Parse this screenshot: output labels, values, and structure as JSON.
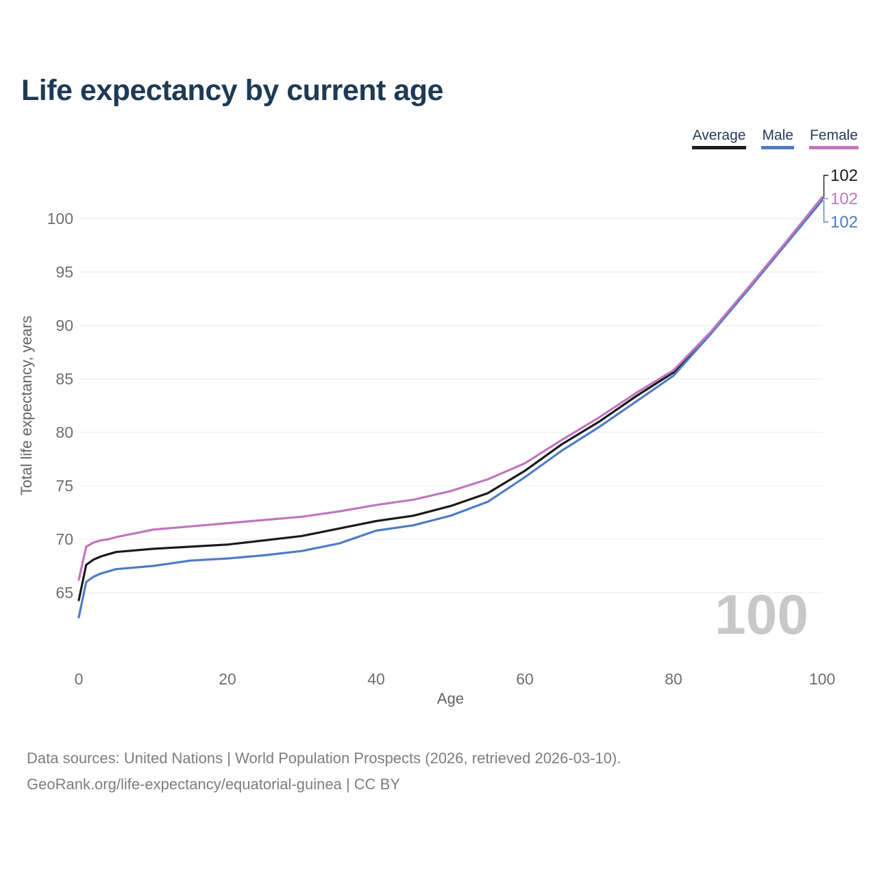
{
  "title": "Life expectancy by current age",
  "legend": {
    "items": [
      {
        "label": "Average",
        "color": "#1f1f1f"
      },
      {
        "label": "Male",
        "color": "#4f7bc5"
      },
      {
        "label": "Female",
        "color": "#bf76bd"
      }
    ]
  },
  "watermark": "100",
  "footer": {
    "line1": "Data sources: United Nations | World Population Prospects (2026, retrieved 2026-03-10).",
    "line2": "GeoRank.org/life-expectancy/equatorial-guinea | CC BY"
  },
  "chart_data": {
    "type": "line",
    "title": "Life expectancy by current age",
    "xlabel": "Age",
    "ylabel": "Total life expectancy, years",
    "xlim": [
      0,
      100
    ],
    "ylim": [
      62,
      103
    ],
    "xticks": [
      0,
      20,
      40,
      60,
      80,
      100
    ],
    "yticks": [
      65,
      70,
      75,
      80,
      85,
      90,
      95,
      100
    ],
    "grid": "horizontal",
    "legend_position": "top-right",
    "x": [
      0,
      1,
      2,
      3,
      4,
      5,
      10,
      15,
      20,
      25,
      30,
      35,
      40,
      45,
      50,
      55,
      60,
      65,
      70,
      75,
      80,
      85,
      90,
      95,
      100
    ],
    "series": [
      {
        "name": "Average",
        "color": "#1a1a1a",
        "end_label": "102",
        "values": [
          64.3,
          67.6,
          68.1,
          68.4,
          68.6,
          68.8,
          69.1,
          69.3,
          69.5,
          69.9,
          70.3,
          71.0,
          71.7,
          72.2,
          73.1,
          74.3,
          76.4,
          78.9,
          81.0,
          83.4,
          85.6,
          89.3,
          93.4,
          97.6,
          101.9
        ]
      },
      {
        "name": "Male",
        "color": "#4f7bc5",
        "end_label": "102",
        "values": [
          62.7,
          66.0,
          66.5,
          66.8,
          67.0,
          67.2,
          67.5,
          68.0,
          68.2,
          68.5,
          68.9,
          69.6,
          70.8,
          71.3,
          72.2,
          73.5,
          75.8,
          78.3,
          80.5,
          82.9,
          85.3,
          89.2,
          93.3,
          97.5,
          101.7
        ]
      },
      {
        "name": "Female",
        "color": "#bf76bd",
        "end_label": "102",
        "values": [
          66.2,
          69.3,
          69.7,
          69.9,
          70.0,
          70.2,
          70.9,
          71.2,
          71.5,
          71.8,
          72.1,
          72.6,
          73.2,
          73.7,
          74.5,
          75.6,
          77.1,
          79.3,
          81.4,
          83.7,
          85.8,
          89.4,
          93.5,
          97.7,
          102.0
        ]
      }
    ],
    "end_label_order": [
      "Average",
      "Female",
      "Male"
    ]
  }
}
